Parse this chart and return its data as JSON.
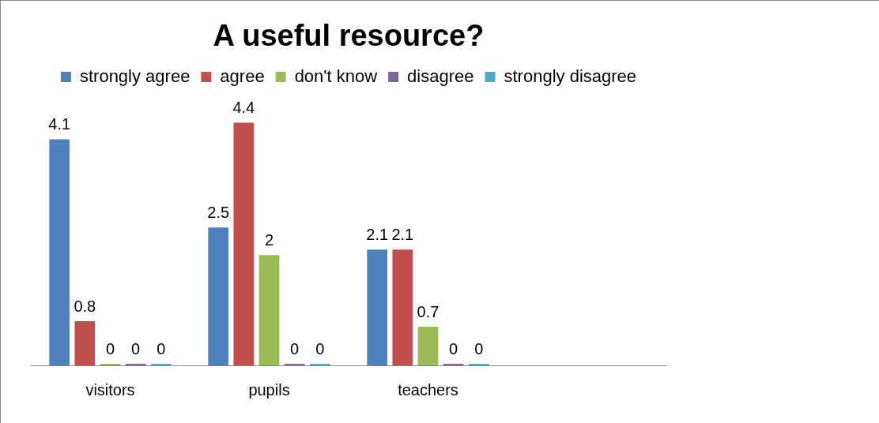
{
  "chart_data": {
    "type": "bar",
    "title": "A useful resource?",
    "categories": [
      "visitors",
      "pupils",
      "teachers",
      null
    ],
    "series": [
      {
        "name": "strongly agree",
        "color": "#4f81bd",
        "values": [
          4.1,
          2.5,
          2.1,
          null
        ]
      },
      {
        "name": "agree",
        "color": "#c0504d",
        "values": [
          0.8,
          4.4,
          2.1,
          null
        ]
      },
      {
        "name": "don't know",
        "color": "#9bbb59",
        "values": [
          0,
          2,
          0.7,
          null
        ]
      },
      {
        "name": "disagree",
        "color": "#8064a2",
        "values": [
          0,
          0,
          0,
          null
        ]
      },
      {
        "name": "strongly disagree",
        "color": "#4bacc6",
        "values": [
          0,
          0,
          0,
          null
        ]
      }
    ],
    "data_labels": true,
    "legend": "top",
    "grid": false,
    "tick_labels": "x"
  }
}
